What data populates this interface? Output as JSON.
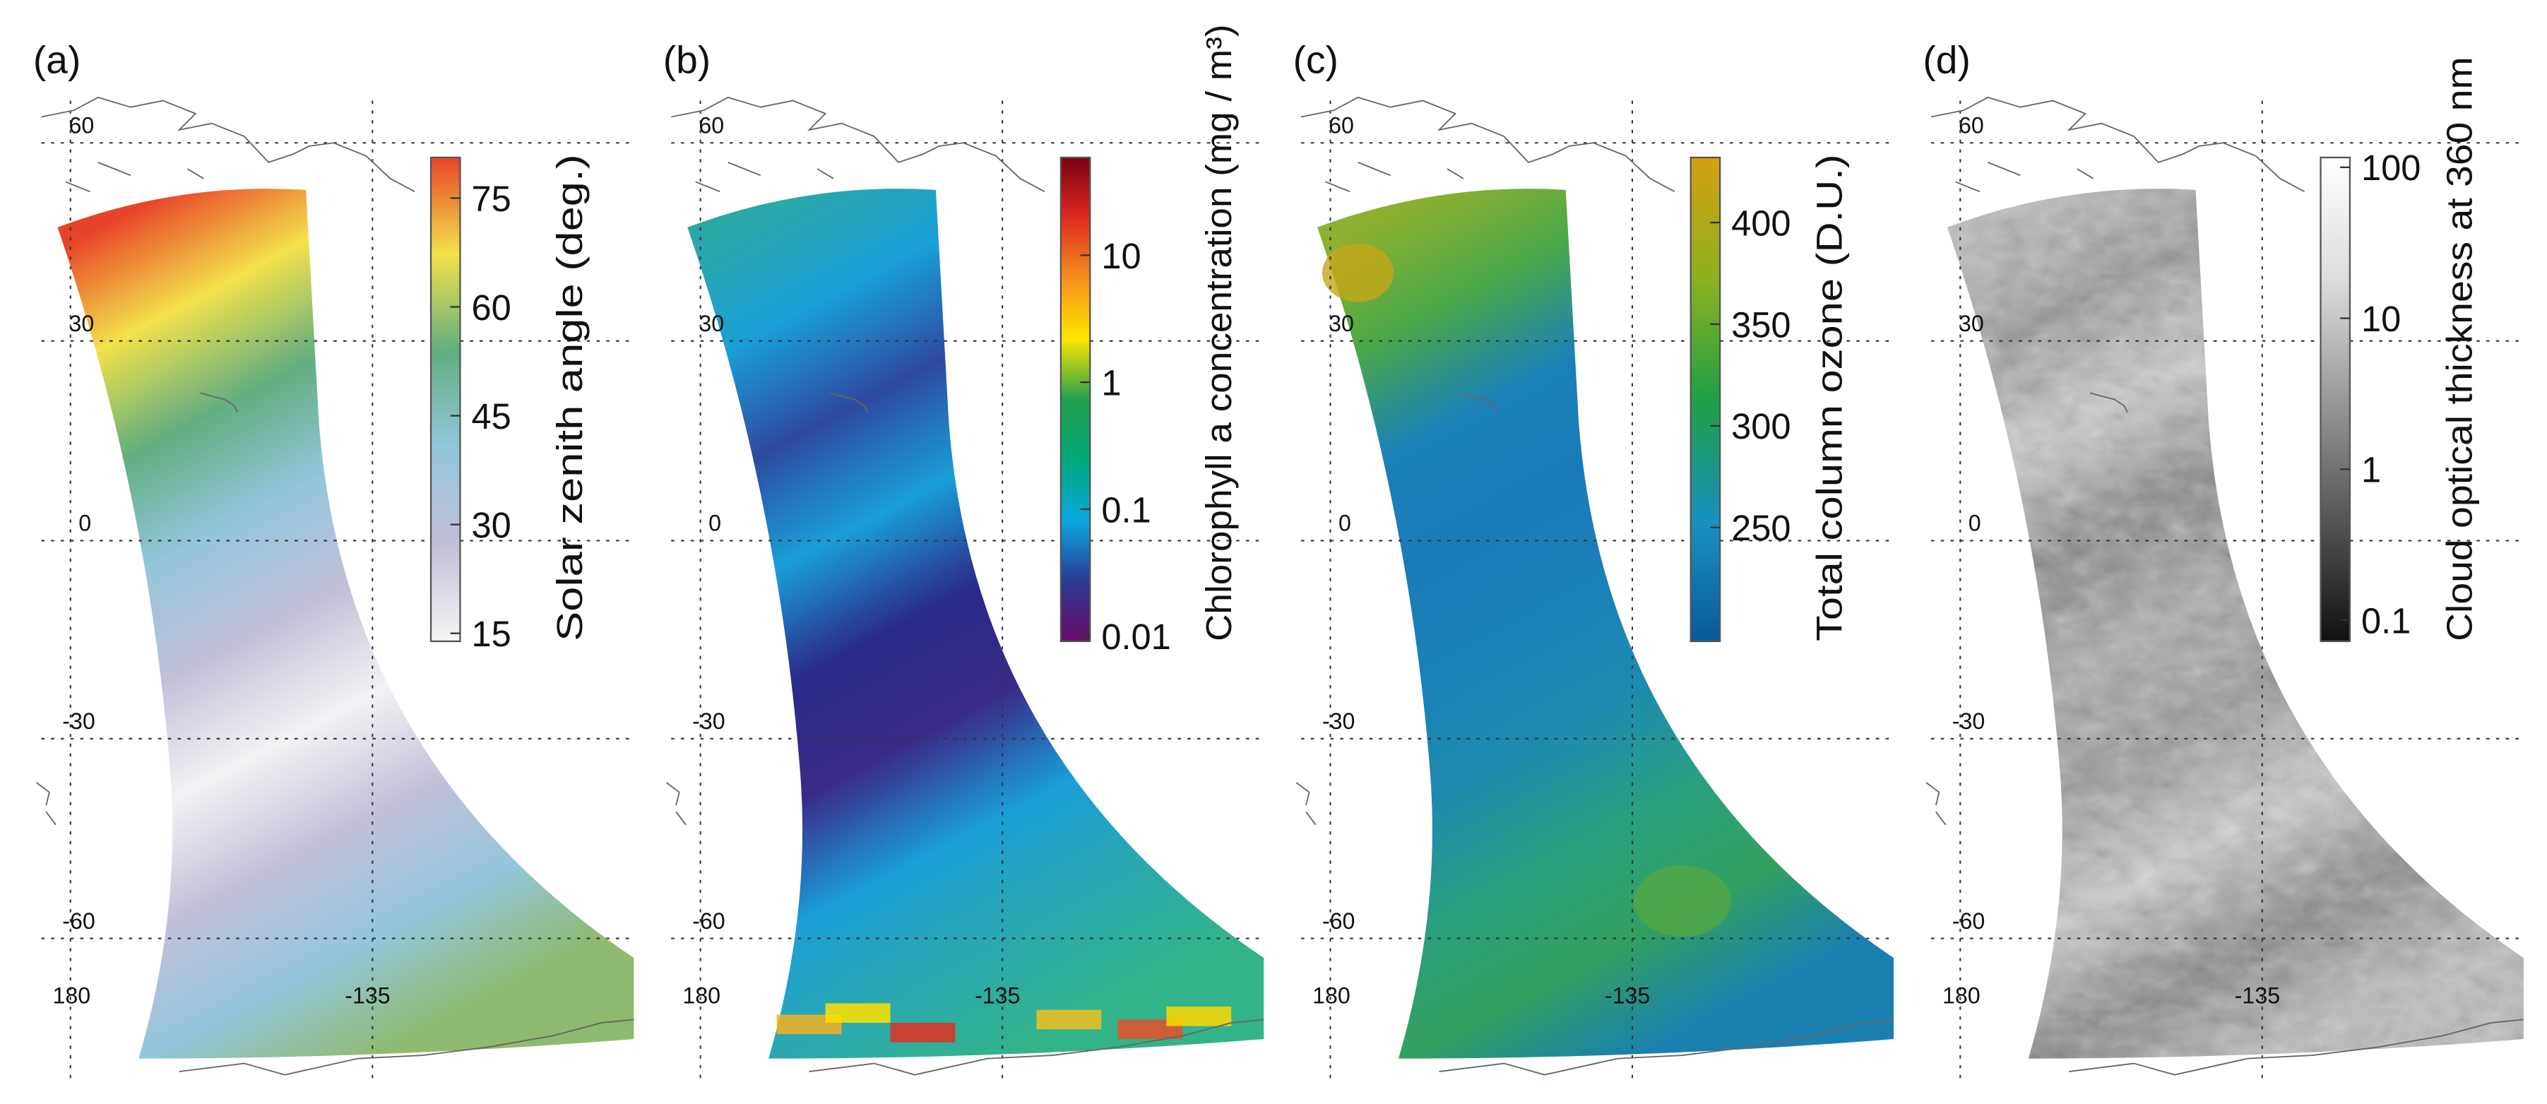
{
  "figure": {
    "panels": [
      {
        "label": "(a)",
        "colorbar": {
          "title": "Solar zenith angle (deg.)",
          "scale": "linear",
          "range": [
            13.9,
            80.6
          ],
          "ticks": [
            {
              "v": 15,
              "t": "15"
            },
            {
              "v": 30,
              "t": "30"
            },
            {
              "v": 45,
              "t": "45"
            },
            {
              "v": 60,
              "t": "60"
            },
            {
              "v": 75,
              "t": "75"
            }
          ],
          "colors": [
            "#f6f6f6",
            "#c3bfd8",
            "#92c6dc",
            "#62ae80",
            "#f3e24a",
            "#e8442a"
          ]
        },
        "swath_colors": [
          "#e8442a",
          "#f3e24a",
          "#62ae80",
          "#92c6dc",
          "#c3bfd8",
          "#f4f2f4",
          "#c3bfd8",
          "#92c6dc",
          "#8fba70"
        ]
      },
      {
        "label": "(b)",
        "colorbar": {
          "title": "Chlorophyll a concentration (mg / m³)",
          "scale": "log",
          "range": [
            -2.04,
            1.77
          ],
          "ticks": [
            {
              "v": -2,
              "t": "0.01"
            },
            {
              "v": -1,
              "t": "0.1"
            },
            {
              "v": 0,
              "t": "1"
            },
            {
              "v": 1,
              "t": "10"
            }
          ],
          "colors": [
            "#6a0a6a",
            "#2a3a92",
            "#0aa8e0",
            "#00a878",
            "#22a050",
            "#ffe600",
            "#f5901e",
            "#e02a20",
            "#7a0010"
          ]
        },
        "swath_colors": [
          "#2aa8a8",
          "#1a9fd8",
          "#2d4aa0",
          "#1a9fd8",
          "#2a2a88",
          "#3a2a88",
          "#1a9fd8",
          "#2aa8b0",
          "#33b38a"
        ]
      },
      {
        "label": "(c)",
        "colorbar": {
          "title": "Total column ozone (D.U.)",
          "scale": "linear",
          "range": [
            194,
            432
          ],
          "ticks": [
            {
              "v": 250,
              "t": "250"
            },
            {
              "v": 300,
              "t": "300"
            },
            {
              "v": 350,
              "t": "350"
            },
            {
              "v": 400,
              "t": "400"
            }
          ],
          "colors": [
            "#0a5a9a",
            "#1a90c0",
            "#20a044",
            "#8eb020",
            "#d4a010"
          ]
        },
        "swath_colors": [
          "#8eb030",
          "#4aa848",
          "#1a80b8",
          "#1a7ab8",
          "#1a80b8",
          "#1e8ab0",
          "#2aa080",
          "#33a060",
          "#1a80b0"
        ]
      },
      {
        "label": "(d)",
        "colorbar": {
          "title": "Cloud optical thickness at 360 nm",
          "scale": "log",
          "range": [
            -1.14,
            2.065
          ],
          "ticks": [
            {
              "v": -1,
              "t": "0.1"
            },
            {
              "v": 0,
              "t": "1"
            },
            {
              "v": 1,
              "t": "10"
            },
            {
              "v": 2,
              "t": "100"
            }
          ],
          "colors": [
            "#111111",
            "#555555",
            "#999999",
            "#dddddd",
            "#ffffff"
          ]
        },
        "swath_colors": [
          "#bbbbbb",
          "#999999",
          "#cccccc",
          "#888888",
          "#aaaaaa",
          "#999999",
          "#cccccc",
          "#888888",
          "#bbbbbb"
        ]
      }
    ],
    "lat_labels": [
      "60",
      "30",
      "0",
      "-30",
      "-60"
    ],
    "lon_labels": [
      "180",
      "-135"
    ]
  }
}
